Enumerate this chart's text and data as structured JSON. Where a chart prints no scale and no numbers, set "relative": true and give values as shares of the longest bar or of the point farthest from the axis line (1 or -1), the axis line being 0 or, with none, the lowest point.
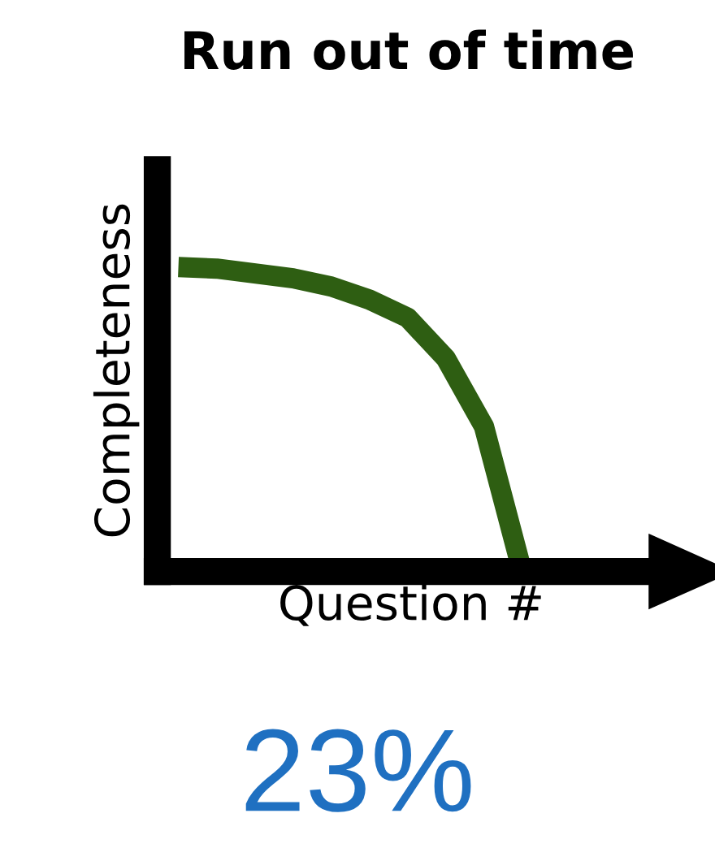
{
  "chart_data": {
    "type": "line",
    "title": "Run out of time",
    "xlabel": "Question #",
    "ylabel": "Completeness",
    "relative": true,
    "categories": [
      null,
      null,
      null,
      null,
      null,
      null,
      null,
      null,
      null,
      null
    ],
    "series": [
      {
        "color": "#2e5e12",
        "values": [
          1.0,
          0.995,
          0.979,
          0.963,
          0.936,
          0.893,
          0.834,
          0.7,
          0.476,
          0.0
        ]
      }
    ],
    "annotations": [
      "23%"
    ],
    "marker": "none",
    "line_style": "solid",
    "grid": false,
    "legend": false
  }
}
